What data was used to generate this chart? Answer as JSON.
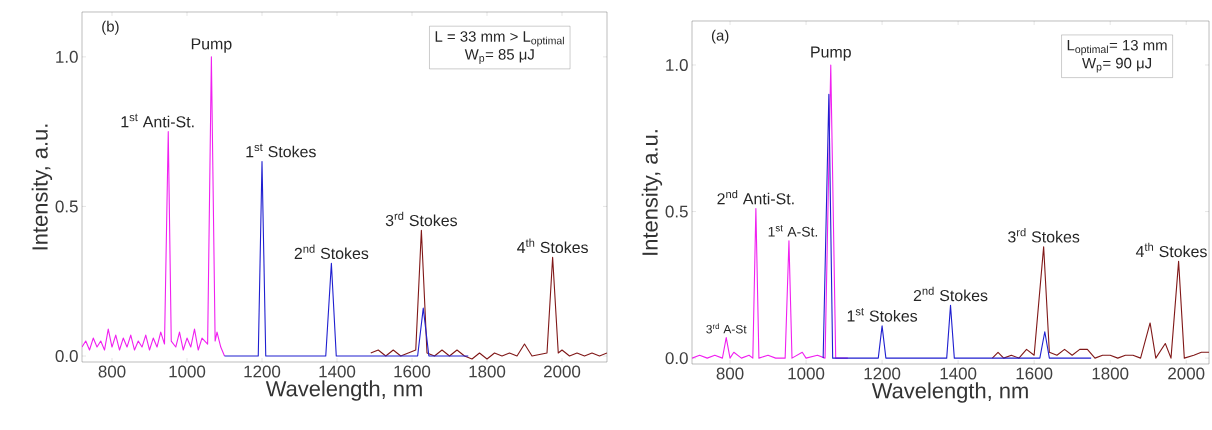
{
  "chart_data": [
    {
      "type": "line",
      "xlabel": "Wavelength, nm",
      "ylabel": "Intensity, a.u.",
      "xlim": [
        720,
        2120
      ],
      "ylim": [
        -0.02,
        1.15
      ],
      "xticks": [
        800,
        1000,
        1200,
        1400,
        1600,
        1800,
        2000
      ],
      "yticks": [
        {
          "value": 0,
          "label": "0.0"
        },
        {
          "value": 0.5,
          "label": "0.5"
        },
        {
          "value": 1,
          "label": "1.0"
        }
      ],
      "series": [
        {
          "color": "#f020f0",
          "x": [
            720,
            730,
            740,
            750,
            760,
            770,
            780,
            790,
            800,
            810,
            820,
            830,
            840,
            850,
            860,
            870,
            880,
            890,
            900,
            910,
            920,
            930,
            940,
            950,
            958,
            970,
            980,
            990,
            1000,
            1010,
            1020,
            1030,
            1040,
            1055,
            1065,
            1075,
            1080,
            1090,
            1100
          ],
          "values": [
            0.03,
            0.05,
            0.02,
            0.06,
            0.03,
            0.05,
            0.02,
            0.09,
            0.03,
            0.07,
            0.02,
            0.06,
            0.03,
            0.07,
            0.02,
            0.05,
            0.03,
            0.07,
            0.02,
            0.06,
            0.03,
            0.08,
            0.04,
            0.75,
            0.05,
            0.03,
            0.08,
            0.02,
            0.06,
            0.03,
            0.09,
            0.02,
            0.06,
            0.04,
            1.0,
            0.05,
            0.08,
            0.03,
            0.0
          ]
        },
        {
          "color": "#801818",
          "x": [
            1490,
            1510,
            1530,
            1550,
            1570,
            1590,
            1610,
            1625,
            1640,
            1660,
            1680,
            1700,
            1720,
            1740,
            1760,
            1780,
            1800,
            1820,
            1840,
            1860,
            1880,
            1900,
            1920,
            1960,
            1975,
            1990,
            2000,
            2020,
            2040,
            2060,
            2080,
            2100,
            2120
          ],
          "values": [
            0.01,
            0.02,
            0.0,
            0.02,
            0.0,
            0.01,
            0.02,
            0.42,
            0.01,
            0.0,
            0.02,
            0.0,
            0.02,
            0.0,
            -0.01,
            0.01,
            -0.01,
            0.01,
            0.0,
            0.01,
            0.0,
            0.04,
            0.0,
            0.01,
            0.33,
            0.01,
            0.02,
            0.0,
            0.01,
            0.0,
            0.01,
            0.0,
            0.01
          ]
        },
        {
          "color": "#1f1fd0",
          "x": [
            1100,
            1190,
            1200,
            1210,
            1370,
            1385,
            1398,
            1615,
            1630,
            1645,
            1750
          ],
          "values": [
            0,
            0,
            0.65,
            0,
            0,
            0.31,
            0,
            0,
            0.16,
            0,
            0
          ]
        }
      ],
      "annotations": [
        "(b)",
        "L = 33 mm > L$_{optimal}$",
        "W$_{p}$= 85 μJ",
        {
          "text": "1$^{st}$ Anti-St.",
          "x": 950,
          "y": 0.75
        },
        {
          "text": "Pump",
          "x": 1065,
          "y": 1.0
        },
        {
          "text": "1$^{st}$ Stokes",
          "x": 1200,
          "y": 0.65
        },
        {
          "text": "2$^{nd}$ Stokes",
          "x": 1385,
          "y": 0.31
        },
        {
          "text": "3$^{rd}$ Stokes",
          "x": 1625,
          "y": 0.42
        },
        {
          "text": "4$^{th}$ Stokes",
          "x": 1975,
          "y": 0.33
        }
      ]
    },
    {
      "type": "line",
      "xlabel": "Wavelength, nm",
      "ylabel": "Intensity, a.u.",
      "xlim": [
        700,
        2060
      ],
      "ylim": [
        -0.02,
        1.15
      ],
      "xticks": [
        800,
        1000,
        1200,
        1400,
        1600,
        1800,
        2000
      ],
      "yticks": [
        {
          "value": 0,
          "label": "0.0"
        },
        {
          "value": 0.5,
          "label": "0.5"
        },
        {
          "value": 1,
          "label": "1.0"
        }
      ],
      "series": [
        {
          "color": "#f020f0",
          "x": [
            700,
            720,
            740,
            760,
            780,
            790,
            800,
            810,
            830,
            850,
            860,
            868,
            876,
            900,
            920,
            945,
            955,
            963,
            990,
            1000,
            1030,
            1050,
            1065,
            1078,
            1110
          ],
          "values": [
            0.0,
            0.01,
            0.0,
            0.01,
            0.0,
            0.07,
            0.0,
            0.02,
            0.0,
            0.01,
            0.0,
            0.51,
            0.0,
            0.01,
            0.0,
            0.0,
            0.4,
            0.0,
            0.02,
            0.0,
            0.01,
            0.0,
            1.0,
            0.0,
            0.0
          ]
        },
        {
          "color": "#801818",
          "x": [
            1490,
            1505,
            1520,
            1540,
            1560,
            1580,
            1600,
            1625,
            1640,
            1660,
            1680,
            1700,
            1720,
            1740,
            1760,
            1780,
            1800,
            1820,
            1840,
            1860,
            1880,
            1905,
            1920,
            1945,
            1960,
            1980,
            1995,
            2020,
            2040,
            2060
          ],
          "values": [
            0.0,
            0.02,
            0.0,
            0.01,
            0.0,
            0.03,
            0.01,
            0.38,
            0.02,
            0.01,
            0.03,
            0.01,
            0.03,
            0.03,
            0.0,
            0.01,
            0.01,
            0.0,
            0.01,
            0.01,
            0.0,
            0.12,
            0.0,
            0.05,
            0.0,
            0.33,
            0.0,
            0.01,
            0.02,
            0.02
          ]
        },
        {
          "color": "#1f1fd0",
          "x": [
            1045,
            1060,
            1070,
            1190,
            1200,
            1210,
            1370,
            1380,
            1390,
            1615,
            1628,
            1640,
            1750
          ],
          "values": [
            0,
            0.9,
            0,
            0,
            0.11,
            0,
            0,
            0.18,
            0,
            0,
            0.09,
            0,
            0
          ]
        }
      ],
      "annotations": [
        "(a)",
        "L$_{optimal}$= 13 mm",
        "W$_{p}$= 90 μJ",
        {
          "text": "3$^{rd}$ A-St",
          "x": 790,
          "y": 0.07
        },
        {
          "text": "2$^{nd}$ Anti-St.",
          "x": 868,
          "y": 0.51
        },
        {
          "text": "1$^{st}$ A-St.",
          "x": 955,
          "y": 0.4
        },
        {
          "text": "Pump",
          "x": 1065,
          "y": 1.0
        },
        {
          "text": "1$^{st}$ Stokes",
          "x": 1200,
          "y": 0.11
        },
        {
          "text": "2$^{nd}$ Stokes",
          "x": 1380,
          "y": 0.18
        },
        {
          "text": "3$^{rd}$ Stokes",
          "x": 1625,
          "y": 0.38
        },
        {
          "text": "4$^{th}$ Stokes",
          "x": 1980,
          "y": 0.33
        }
      ]
    }
  ]
}
